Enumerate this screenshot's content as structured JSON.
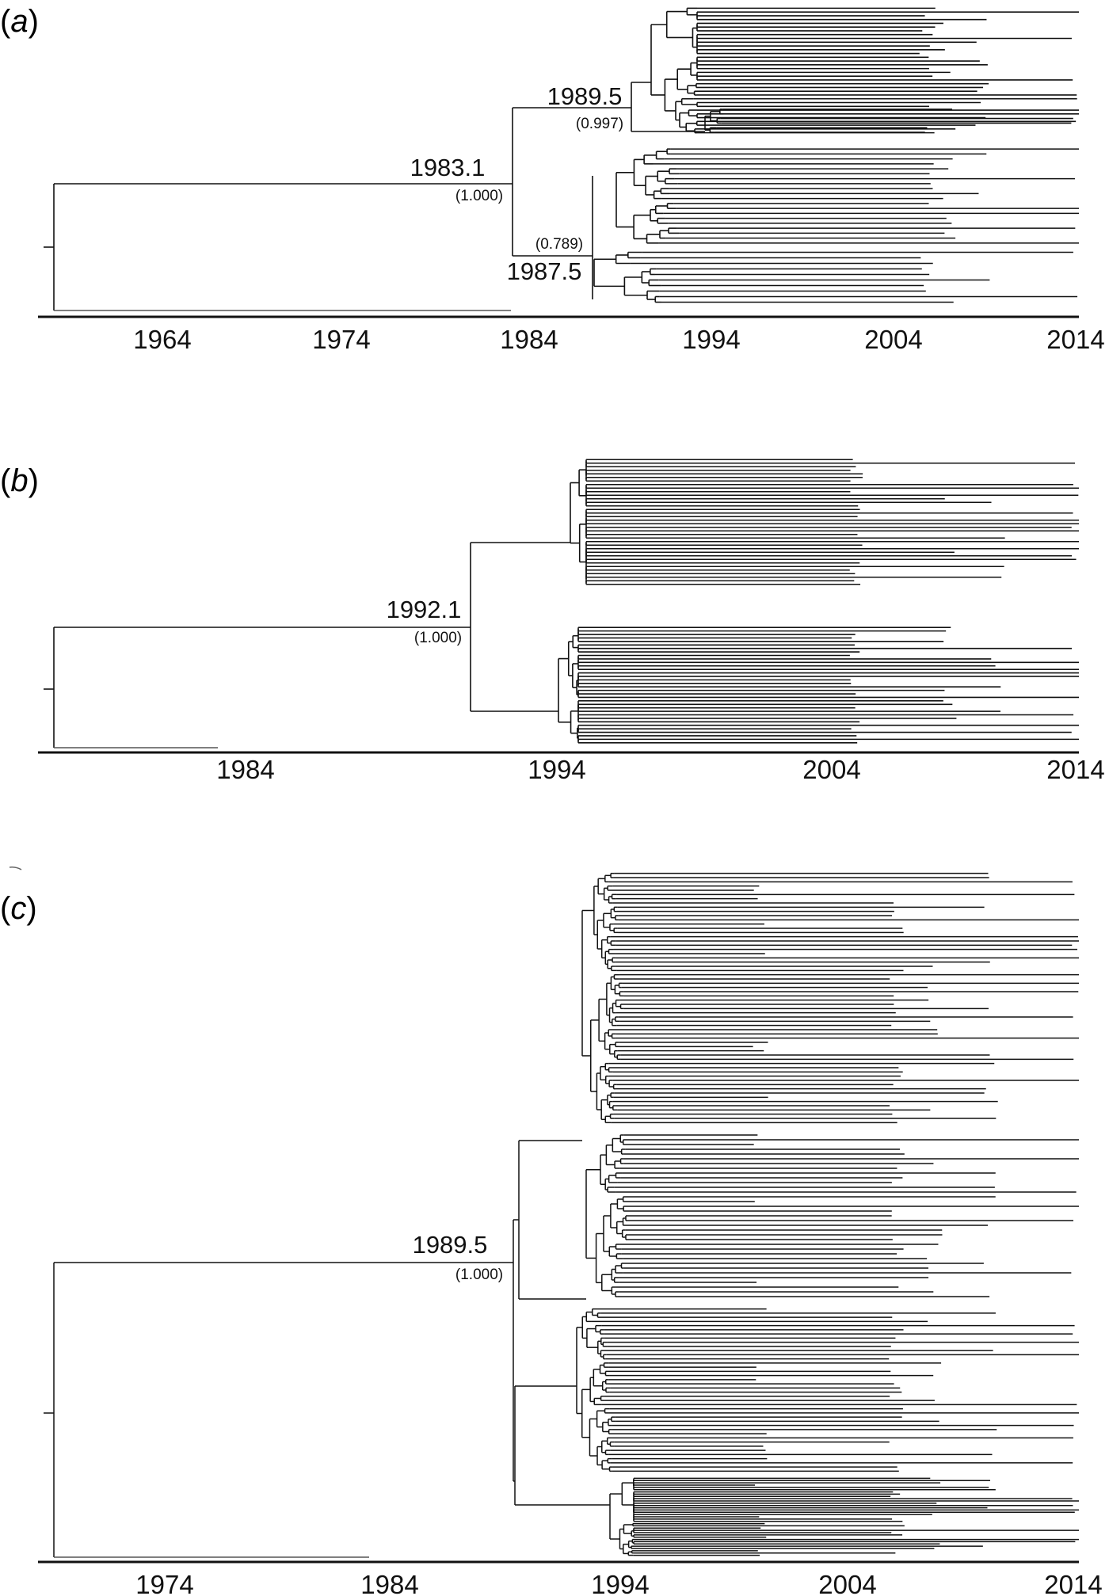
{
  "panels": [
    {
      "label": "(a)",
      "label_letter": "a",
      "axis_ticks": [
        "1964",
        "1974",
        "1984",
        "1994",
        "2004",
        "2014"
      ],
      "tip_count": 70,
      "nodes": [
        {
          "date": "1989.5",
          "support": "(0.997)"
        },
        {
          "date": "1983.1",
          "support": "(1.000)"
        },
        {
          "date": "1987.5",
          "support": "(0.789)"
        }
      ]
    },
    {
      "label": "(b)",
      "label_letter": "b",
      "axis_ticks": [
        "1984",
        "1994",
        "2004",
        "2014"
      ],
      "tip_count": 70,
      "nodes": [
        {
          "date": "1992.1",
          "support": "(1.000)"
        }
      ]
    },
    {
      "label": "(c)",
      "label_letter": "c",
      "axis_ticks": [
        "1974",
        "1984",
        "1994",
        "2004",
        "2014"
      ],
      "tip_count": 170,
      "nodes": [
        {
          "date": "1989.5",
          "support": "(1.000)"
        }
      ]
    }
  ]
}
